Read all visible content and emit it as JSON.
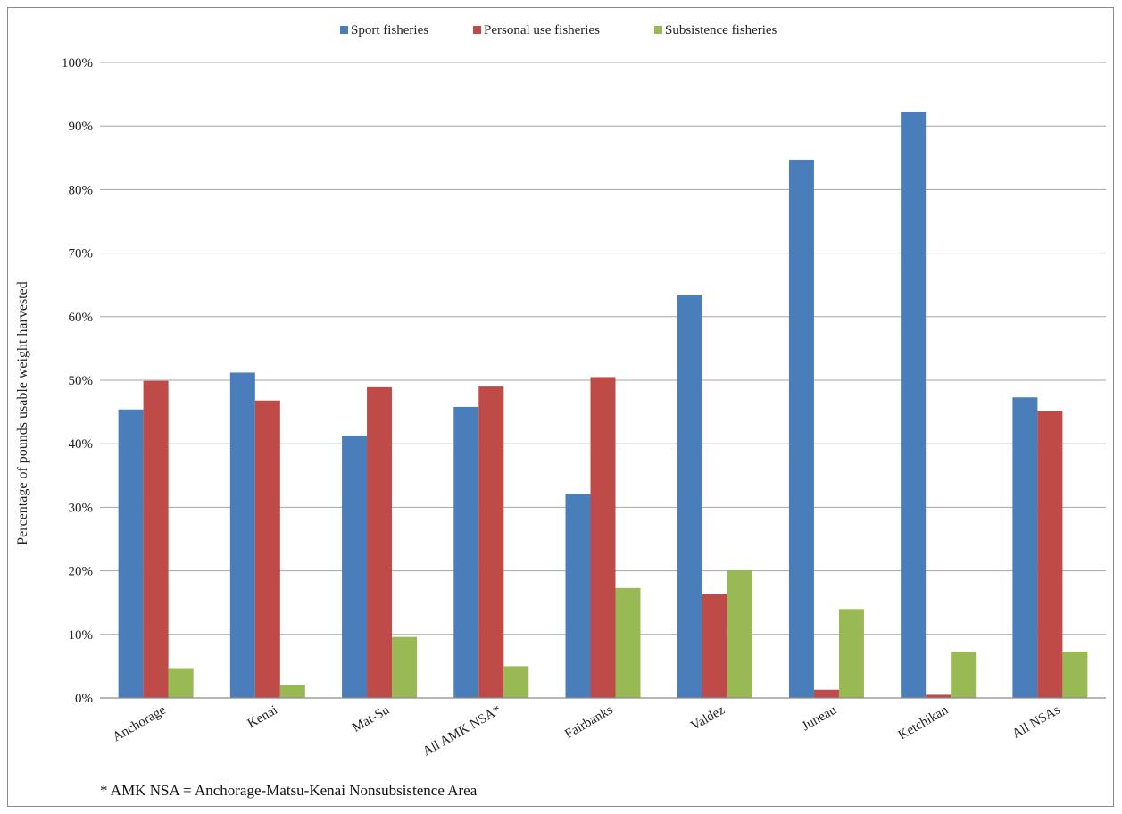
{
  "chart_data": {
    "type": "bar",
    "title": "",
    "xlabel": "",
    "ylabel": "Percentage of pounds usable weight harvested",
    "ylim": [
      0,
      100
    ],
    "yticks": [
      "0%",
      "10%",
      "20%",
      "30%",
      "40%",
      "50%",
      "60%",
      "70%",
      "80%",
      "90%",
      "100%"
    ],
    "grid": true,
    "legend_position": "top",
    "categories": [
      "Anchorage",
      "Kenai",
      "Mat-Su",
      "All AMK NSA*",
      "Fairbanks",
      "Valdez",
      "Juneau",
      "Ketchikan",
      "All NSAs"
    ],
    "series": [
      {
        "name": "Sport fisheries",
        "color": "#4a7ebb",
        "values": [
          45.4,
          51.2,
          41.3,
          45.8,
          32.1,
          63.4,
          84.7,
          92.2,
          47.3
        ]
      },
      {
        "name": "Personal use fisheries",
        "color": "#be4b48",
        "values": [
          49.9,
          46.8,
          48.9,
          49.0,
          50.5,
          16.3,
          1.3,
          0.5,
          45.2
        ]
      },
      {
        "name": "Subsistence fisheries",
        "color": "#98b954",
        "values": [
          4.7,
          2.0,
          9.6,
          5.0,
          17.3,
          20.1,
          14.0,
          7.3,
          7.3
        ]
      }
    ],
    "footnote": "* AMK NSA = Anchorage-Matsu-Kenai Nonsubsistence Area"
  }
}
